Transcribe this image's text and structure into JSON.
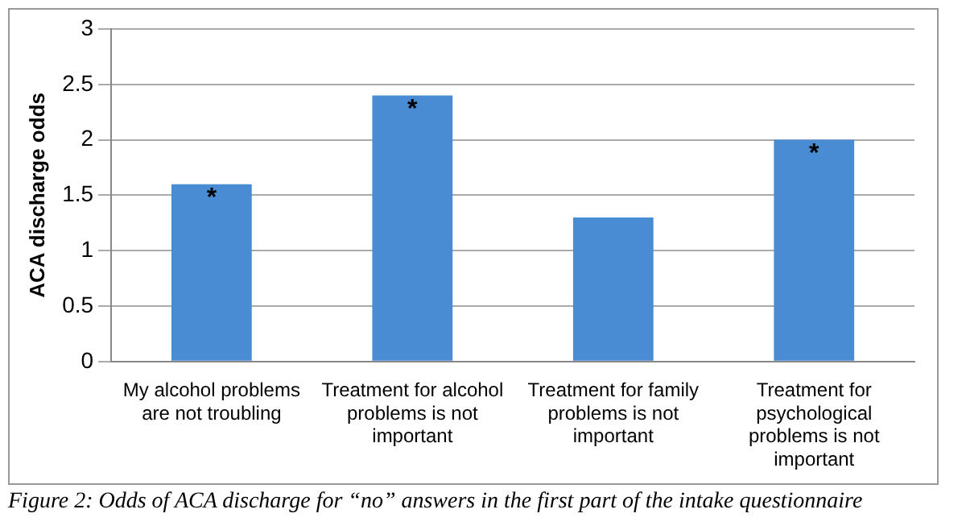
{
  "chart_data": {
    "type": "bar",
    "ylabel": "ACA discharge odds",
    "categories": [
      "My alcohol problems are not troubling",
      "Treatment for alcohol problems is not important",
      "Treatment for family problems is not important",
      "Treatment for psychological problems is not important"
    ],
    "values": [
      1.6,
      2.4,
      1.3,
      2.0
    ],
    "color": "#4a8cd4",
    "ylim": [
      0,
      3
    ],
    "yticks": [
      0,
      0.5,
      1,
      1.5,
      2,
      2.5,
      3
    ],
    "grid": "y",
    "legend": false,
    "annotations": [
      {
        "text": "*",
        "x": "My alcohol problems are not troubling",
        "y": 1.6
      },
      {
        "text": "*",
        "x": "Treatment for alcohol problems is not important",
        "y": 2.4
      },
      {
        "text": "*",
        "x": "Treatment for psychological problems is not important",
        "y": 2.0
      },
      "Figure 2: Odds of ACA discharge for “no” answers in the first part of the intake questionnaire"
    ]
  }
}
